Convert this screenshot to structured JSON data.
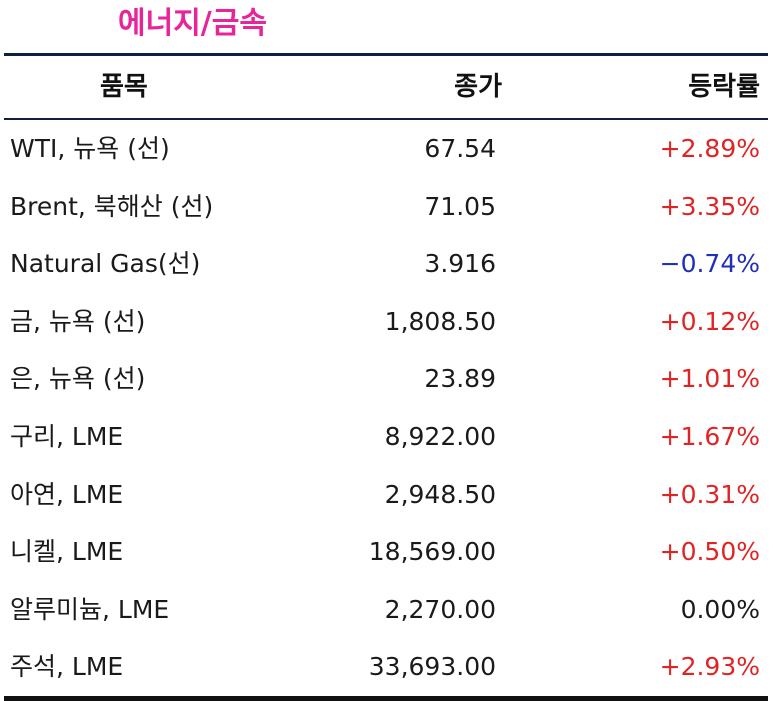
{
  "title": "에너지/금속",
  "columns": {
    "name": "품목",
    "price": "종가",
    "change": "등락률"
  },
  "colors": {
    "title": "#e8249a",
    "positive": "#e02424",
    "negative": "#1f2fb8",
    "neutral": "#1a1a1a",
    "rule": "#0f1f40"
  },
  "rows": [
    {
      "name": "WTI, 뉴욕 (선)",
      "price": "67.54",
      "change": "+2.89%",
      "direction": "pos"
    },
    {
      "name": "Brent, 북해산 (선)",
      "price": "71.05",
      "change": "+3.35%",
      "direction": "pos"
    },
    {
      "name": "Natural Gas(선)",
      "price": "3.916",
      "change": "−0.74%",
      "direction": "neg"
    },
    {
      "name": "금, 뉴욕  (선)",
      "price": "1,808.50",
      "change": "+0.12%",
      "direction": "pos"
    },
    {
      "name": "은, 뉴욕  (선)",
      "price": "23.89",
      "change": "+1.01%",
      "direction": "pos"
    },
    {
      "name": "구리, LME",
      "price": "8,922.00",
      "change": "+1.67%",
      "direction": "pos"
    },
    {
      "name": "아연, LME",
      "price": "2,948.50",
      "change": "+0.31%",
      "direction": "pos"
    },
    {
      "name": "니켈, LME",
      "price": "18,569.00",
      "change": "+0.50%",
      "direction": "pos"
    },
    {
      "name": "알루미늄, LME",
      "price": "2,270.00",
      "change": "0.00%",
      "direction": "flat"
    },
    {
      "name": "주석, LME",
      "price": "33,693.00",
      "change": "+2.93%",
      "direction": "pos"
    }
  ]
}
